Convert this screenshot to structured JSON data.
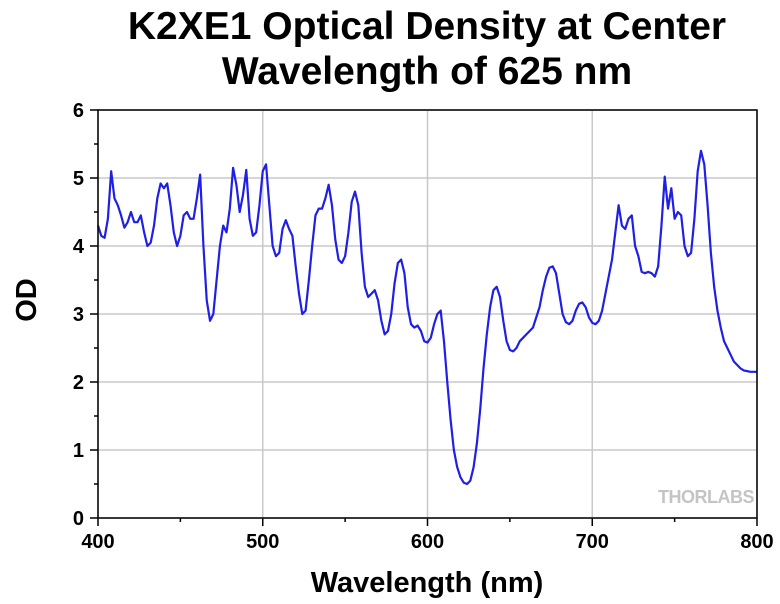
{
  "chart_data": {
    "type": "line",
    "title": "K2XE1 Optical Density at Center Wavelength of 625 nm",
    "xlabel": "Wavelength (nm)",
    "ylabel": "OD",
    "watermark": "THORLABS",
    "xlim": [
      400,
      800
    ],
    "ylim": [
      0,
      6
    ],
    "xticks": [
      400,
      500,
      600,
      700,
      800
    ],
    "yticks": [
      0,
      1,
      2,
      3,
      4,
      5,
      6
    ],
    "xminorticks": [
      450,
      550,
      650,
      750
    ],
    "yminorticks": [
      0.5,
      1.5,
      2.5,
      3.5,
      4.5,
      5.5
    ],
    "grid": true,
    "series": [
      {
        "name": "OD",
        "color": "#1f1fe6",
        "x": [
          400,
          402,
          404,
          406,
          408,
          410,
          412,
          414,
          416,
          418,
          420,
          422,
          424,
          426,
          428,
          430,
          432,
          434,
          436,
          438,
          440,
          442,
          444,
          446,
          448,
          450,
          452,
          454,
          456,
          458,
          460,
          462,
          464,
          466,
          468,
          470,
          472,
          474,
          476,
          478,
          480,
          482,
          484,
          486,
          488,
          490,
          492,
          494,
          496,
          498,
          500,
          502,
          504,
          506,
          508,
          510,
          512,
          514,
          516,
          518,
          520,
          522,
          524,
          526,
          528,
          530,
          532,
          534,
          536,
          538,
          540,
          542,
          544,
          546,
          548,
          550,
          552,
          554,
          556,
          558,
          560,
          562,
          564,
          566,
          568,
          570,
          572,
          574,
          576,
          578,
          580,
          582,
          584,
          586,
          588,
          590,
          592,
          594,
          596,
          598,
          600,
          602,
          604,
          606,
          608,
          610,
          612,
          614,
          616,
          618,
          620,
          622,
          624,
          626,
          628,
          630,
          632,
          634,
          636,
          638,
          640,
          642,
          644,
          646,
          648,
          650,
          652,
          654,
          656,
          658,
          660,
          662,
          664,
          666,
          668,
          670,
          672,
          674,
          676,
          678,
          680,
          682,
          684,
          686,
          688,
          690,
          692,
          694,
          696,
          698,
          700,
          702,
          704,
          706,
          708,
          710,
          712,
          714,
          716,
          718,
          720,
          722,
          724,
          726,
          728,
          730,
          732,
          734,
          736,
          738,
          740,
          742,
          744,
          746,
          748,
          750,
          752,
          754,
          756,
          758,
          760,
          762,
          764,
          766,
          768,
          770,
          772,
          774,
          776,
          778,
          780,
          782,
          784,
          786,
          788,
          790,
          792,
          794,
          796,
          798,
          800
        ],
        "values": [
          4.3,
          4.15,
          4.12,
          4.4,
          5.1,
          4.7,
          4.6,
          4.45,
          4.27,
          4.35,
          4.5,
          4.35,
          4.35,
          4.45,
          4.2,
          4.0,
          4.05,
          4.3,
          4.7,
          4.92,
          4.85,
          4.92,
          4.6,
          4.2,
          4.0,
          4.15,
          4.45,
          4.5,
          4.4,
          4.4,
          4.7,
          5.05,
          4.0,
          3.2,
          2.9,
          3.0,
          3.5,
          4.0,
          4.3,
          4.2,
          4.55,
          5.15,
          4.9,
          4.5,
          4.75,
          5.12,
          4.4,
          4.15,
          4.2,
          4.6,
          5.1,
          5.2,
          4.6,
          4.0,
          3.85,
          3.9,
          4.25,
          4.38,
          4.25,
          4.15,
          3.7,
          3.3,
          3.0,
          3.05,
          3.5,
          4.0,
          4.45,
          4.55,
          4.55,
          4.7,
          4.9,
          4.6,
          4.1,
          3.8,
          3.75,
          3.85,
          4.2,
          4.65,
          4.8,
          4.6,
          3.9,
          3.4,
          3.25,
          3.3,
          3.35,
          3.2,
          2.9,
          2.7,
          2.75,
          3.0,
          3.45,
          3.75,
          3.8,
          3.6,
          3.1,
          2.85,
          2.8,
          2.83,
          2.75,
          2.6,
          2.58,
          2.65,
          2.85,
          3.0,
          3.05,
          2.6,
          2.0,
          1.45,
          1.0,
          0.75,
          0.6,
          0.52,
          0.5,
          0.55,
          0.75,
          1.1,
          1.6,
          2.2,
          2.7,
          3.1,
          3.35,
          3.4,
          3.25,
          2.9,
          2.6,
          2.47,
          2.45,
          2.5,
          2.6,
          2.65,
          2.7,
          2.75,
          2.8,
          2.95,
          3.1,
          3.35,
          3.55,
          3.68,
          3.7,
          3.6,
          3.3,
          3.0,
          2.88,
          2.85,
          2.9,
          3.05,
          3.15,
          3.17,
          3.1,
          2.95,
          2.87,
          2.85,
          2.9,
          3.05,
          3.3,
          3.55,
          3.8,
          4.2,
          4.6,
          4.3,
          4.25,
          4.4,
          4.45,
          4.0,
          3.85,
          3.62,
          3.6,
          3.62,
          3.6,
          3.55,
          3.7,
          4.3,
          5.02,
          4.55,
          4.85,
          4.4,
          4.5,
          4.45,
          4.0,
          3.85,
          3.9,
          4.4,
          5.1,
          5.4,
          5.2,
          4.6,
          3.9,
          3.4,
          3.05,
          2.8,
          2.6,
          2.5,
          2.4,
          2.3,
          2.25,
          2.2,
          2.17,
          2.16,
          2.15,
          2.15,
          2.15
        ]
      }
    ]
  }
}
